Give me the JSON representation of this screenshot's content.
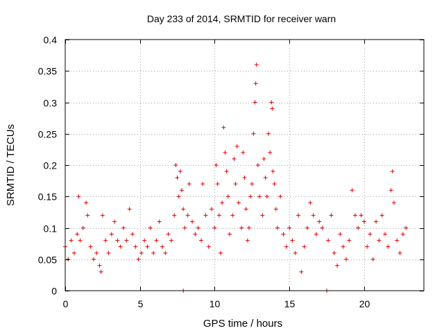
{
  "chart_data": {
    "type": "scatter",
    "title": "Day 233 of 2014, SRMTID for receiver warn",
    "xlabel": "GPS time / hours",
    "ylabel": "SRMTID / TECUs",
    "xlim": [
      0,
      24
    ],
    "ylim": [
      0,
      0.4
    ],
    "x_ticks": [
      0,
      5,
      10,
      15,
      20
    ],
    "x_tick_labels": [
      "0",
      "5",
      "10",
      "15",
      "20"
    ],
    "y_ticks": [
      0,
      0.05,
      0.1,
      0.15,
      0.2,
      0.25,
      0.3,
      0.35,
      0.4
    ],
    "y_tick_labels": [
      "0",
      "0.05",
      "0.1",
      "0.15",
      "0.2",
      "0.25",
      "0.3",
      "0.35",
      "0.4"
    ],
    "grid": true,
    "marker": "plus",
    "color": "#e00000",
    "series": [
      {
        "name": "SRMTID",
        "points": [
          [
            0.0,
            0.07
          ],
          [
            0.2,
            0.05
          ],
          [
            0.4,
            0.08
          ],
          [
            0.6,
            0.06
          ],
          [
            0.8,
            0.09
          ],
          [
            0.9,
            0.15
          ],
          [
            1.0,
            0.08
          ],
          [
            1.2,
            0.1
          ],
          [
            1.4,
            0.14
          ],
          [
            1.5,
            0.12
          ],
          [
            1.7,
            0.07
          ],
          [
            1.9,
            0.05
          ],
          [
            2.1,
            0.06
          ],
          [
            2.3,
            0.04
          ],
          [
            2.4,
            0.03
          ],
          [
            2.5,
            0.12
          ],
          [
            2.7,
            0.08
          ],
          [
            2.9,
            0.06
          ],
          [
            3.1,
            0.09
          ],
          [
            3.3,
            0.11
          ],
          [
            3.5,
            0.08
          ],
          [
            3.7,
            0.07
          ],
          [
            3.9,
            0.1
          ],
          [
            4.1,
            0.08
          ],
          [
            4.3,
            0.13
          ],
          [
            4.5,
            0.09
          ],
          [
            4.7,
            0.07
          ],
          [
            4.9,
            0.05
          ],
          [
            5.1,
            0.06
          ],
          [
            5.3,
            0.08
          ],
          [
            5.5,
            0.07
          ],
          [
            5.7,
            0.1
          ],
          [
            5.9,
            0.06
          ],
          [
            6.1,
            0.08
          ],
          [
            6.3,
            0.11
          ],
          [
            6.5,
            0.07
          ],
          [
            6.7,
            0.06
          ],
          [
            6.9,
            0.09
          ],
          [
            7.1,
            0.08
          ],
          [
            7.3,
            0.12
          ],
          [
            7.4,
            0.2
          ],
          [
            7.5,
            0.18
          ],
          [
            7.6,
            0.15
          ],
          [
            7.7,
            0.19
          ],
          [
            7.8,
            0.16
          ],
          [
            7.9,
            0.13
          ],
          [
            7.9,
            0.0
          ],
          [
            8.0,
            0.1
          ],
          [
            8.2,
            0.12
          ],
          [
            8.3,
            0.17
          ],
          [
            8.5,
            0.11
          ],
          [
            8.7,
            0.09
          ],
          [
            8.9,
            0.1
          ],
          [
            9.1,
            0.08
          ],
          [
            9.2,
            0.17
          ],
          [
            9.4,
            0.12
          ],
          [
            9.6,
            0.07
          ],
          [
            9.8,
            0.13
          ],
          [
            10.0,
            0.1
          ],
          [
            10.1,
            0.2
          ],
          [
            10.2,
            0.17
          ],
          [
            10.3,
            0.12
          ],
          [
            10.4,
            0.06
          ],
          [
            10.5,
            0.14
          ],
          [
            10.6,
            0.26
          ],
          [
            10.7,
            0.22
          ],
          [
            10.8,
            0.19
          ],
          [
            10.9,
            0.15
          ],
          [
            11.0,
            0.09
          ],
          [
            11.2,
            0.12
          ],
          [
            11.3,
            0.21
          ],
          [
            11.4,
            0.17
          ],
          [
            11.5,
            0.23
          ],
          [
            11.6,
            0.14
          ],
          [
            11.8,
            0.1
          ],
          [
            11.9,
            0.22
          ],
          [
            12.0,
            0.18
          ],
          [
            12.1,
            0.13
          ],
          [
            12.2,
            0.08
          ],
          [
            12.3,
            0.1
          ],
          [
            12.4,
            0.15
          ],
          [
            12.5,
            0.17
          ],
          [
            12.6,
            0.25
          ],
          [
            12.7,
            0.3
          ],
          [
            12.75,
            0.33
          ],
          [
            12.8,
            0.36
          ],
          [
            12.9,
            0.2
          ],
          [
            13.0,
            0.15
          ],
          [
            13.2,
            0.12
          ],
          [
            13.3,
            0.21
          ],
          [
            13.4,
            0.18
          ],
          [
            13.5,
            0.15
          ],
          [
            13.6,
            0.25
          ],
          [
            13.7,
            0.22
          ],
          [
            13.8,
            0.3
          ],
          [
            13.85,
            0.29
          ],
          [
            13.9,
            0.19
          ],
          [
            14.0,
            0.17
          ],
          [
            14.1,
            0.13
          ],
          [
            14.2,
            0.1
          ],
          [
            14.4,
            0.15
          ],
          [
            14.6,
            0.09
          ],
          [
            14.8,
            0.07
          ],
          [
            15.0,
            0.1
          ],
          [
            15.2,
            0.08
          ],
          [
            15.4,
            0.06
          ],
          [
            15.6,
            0.12
          ],
          [
            15.8,
            0.03
          ],
          [
            16.0,
            0.07
          ],
          [
            16.2,
            0.1
          ],
          [
            16.4,
            0.14
          ],
          [
            16.6,
            0.12
          ],
          [
            16.8,
            0.09
          ],
          [
            17.0,
            0.11
          ],
          [
            17.2,
            0.1
          ],
          [
            17.5,
            0.0
          ],
          [
            17.6,
            0.08
          ],
          [
            17.8,
            0.12
          ],
          [
            18.0,
            0.06
          ],
          [
            18.2,
            0.04
          ],
          [
            18.4,
            0.09
          ],
          [
            18.6,
            0.07
          ],
          [
            18.8,
            0.05
          ],
          [
            19.0,
            0.08
          ],
          [
            19.2,
            0.16
          ],
          [
            19.4,
            0.12
          ],
          [
            19.6,
            0.1
          ],
          [
            19.8,
            0.12
          ],
          [
            20.0,
            0.11
          ],
          [
            20.2,
            0.07
          ],
          [
            20.4,
            0.09
          ],
          [
            20.6,
            0.05
          ],
          [
            20.8,
            0.11
          ],
          [
            21.0,
            0.08
          ],
          [
            21.2,
            0.12
          ],
          [
            21.4,
            0.09
          ],
          [
            21.6,
            0.07
          ],
          [
            21.8,
            0.16
          ],
          [
            21.9,
            0.19
          ],
          [
            22.0,
            0.14
          ],
          [
            22.2,
            0.08
          ],
          [
            22.4,
            0.06
          ],
          [
            22.6,
            0.09
          ],
          [
            22.8,
            0.1
          ]
        ]
      }
    ]
  }
}
